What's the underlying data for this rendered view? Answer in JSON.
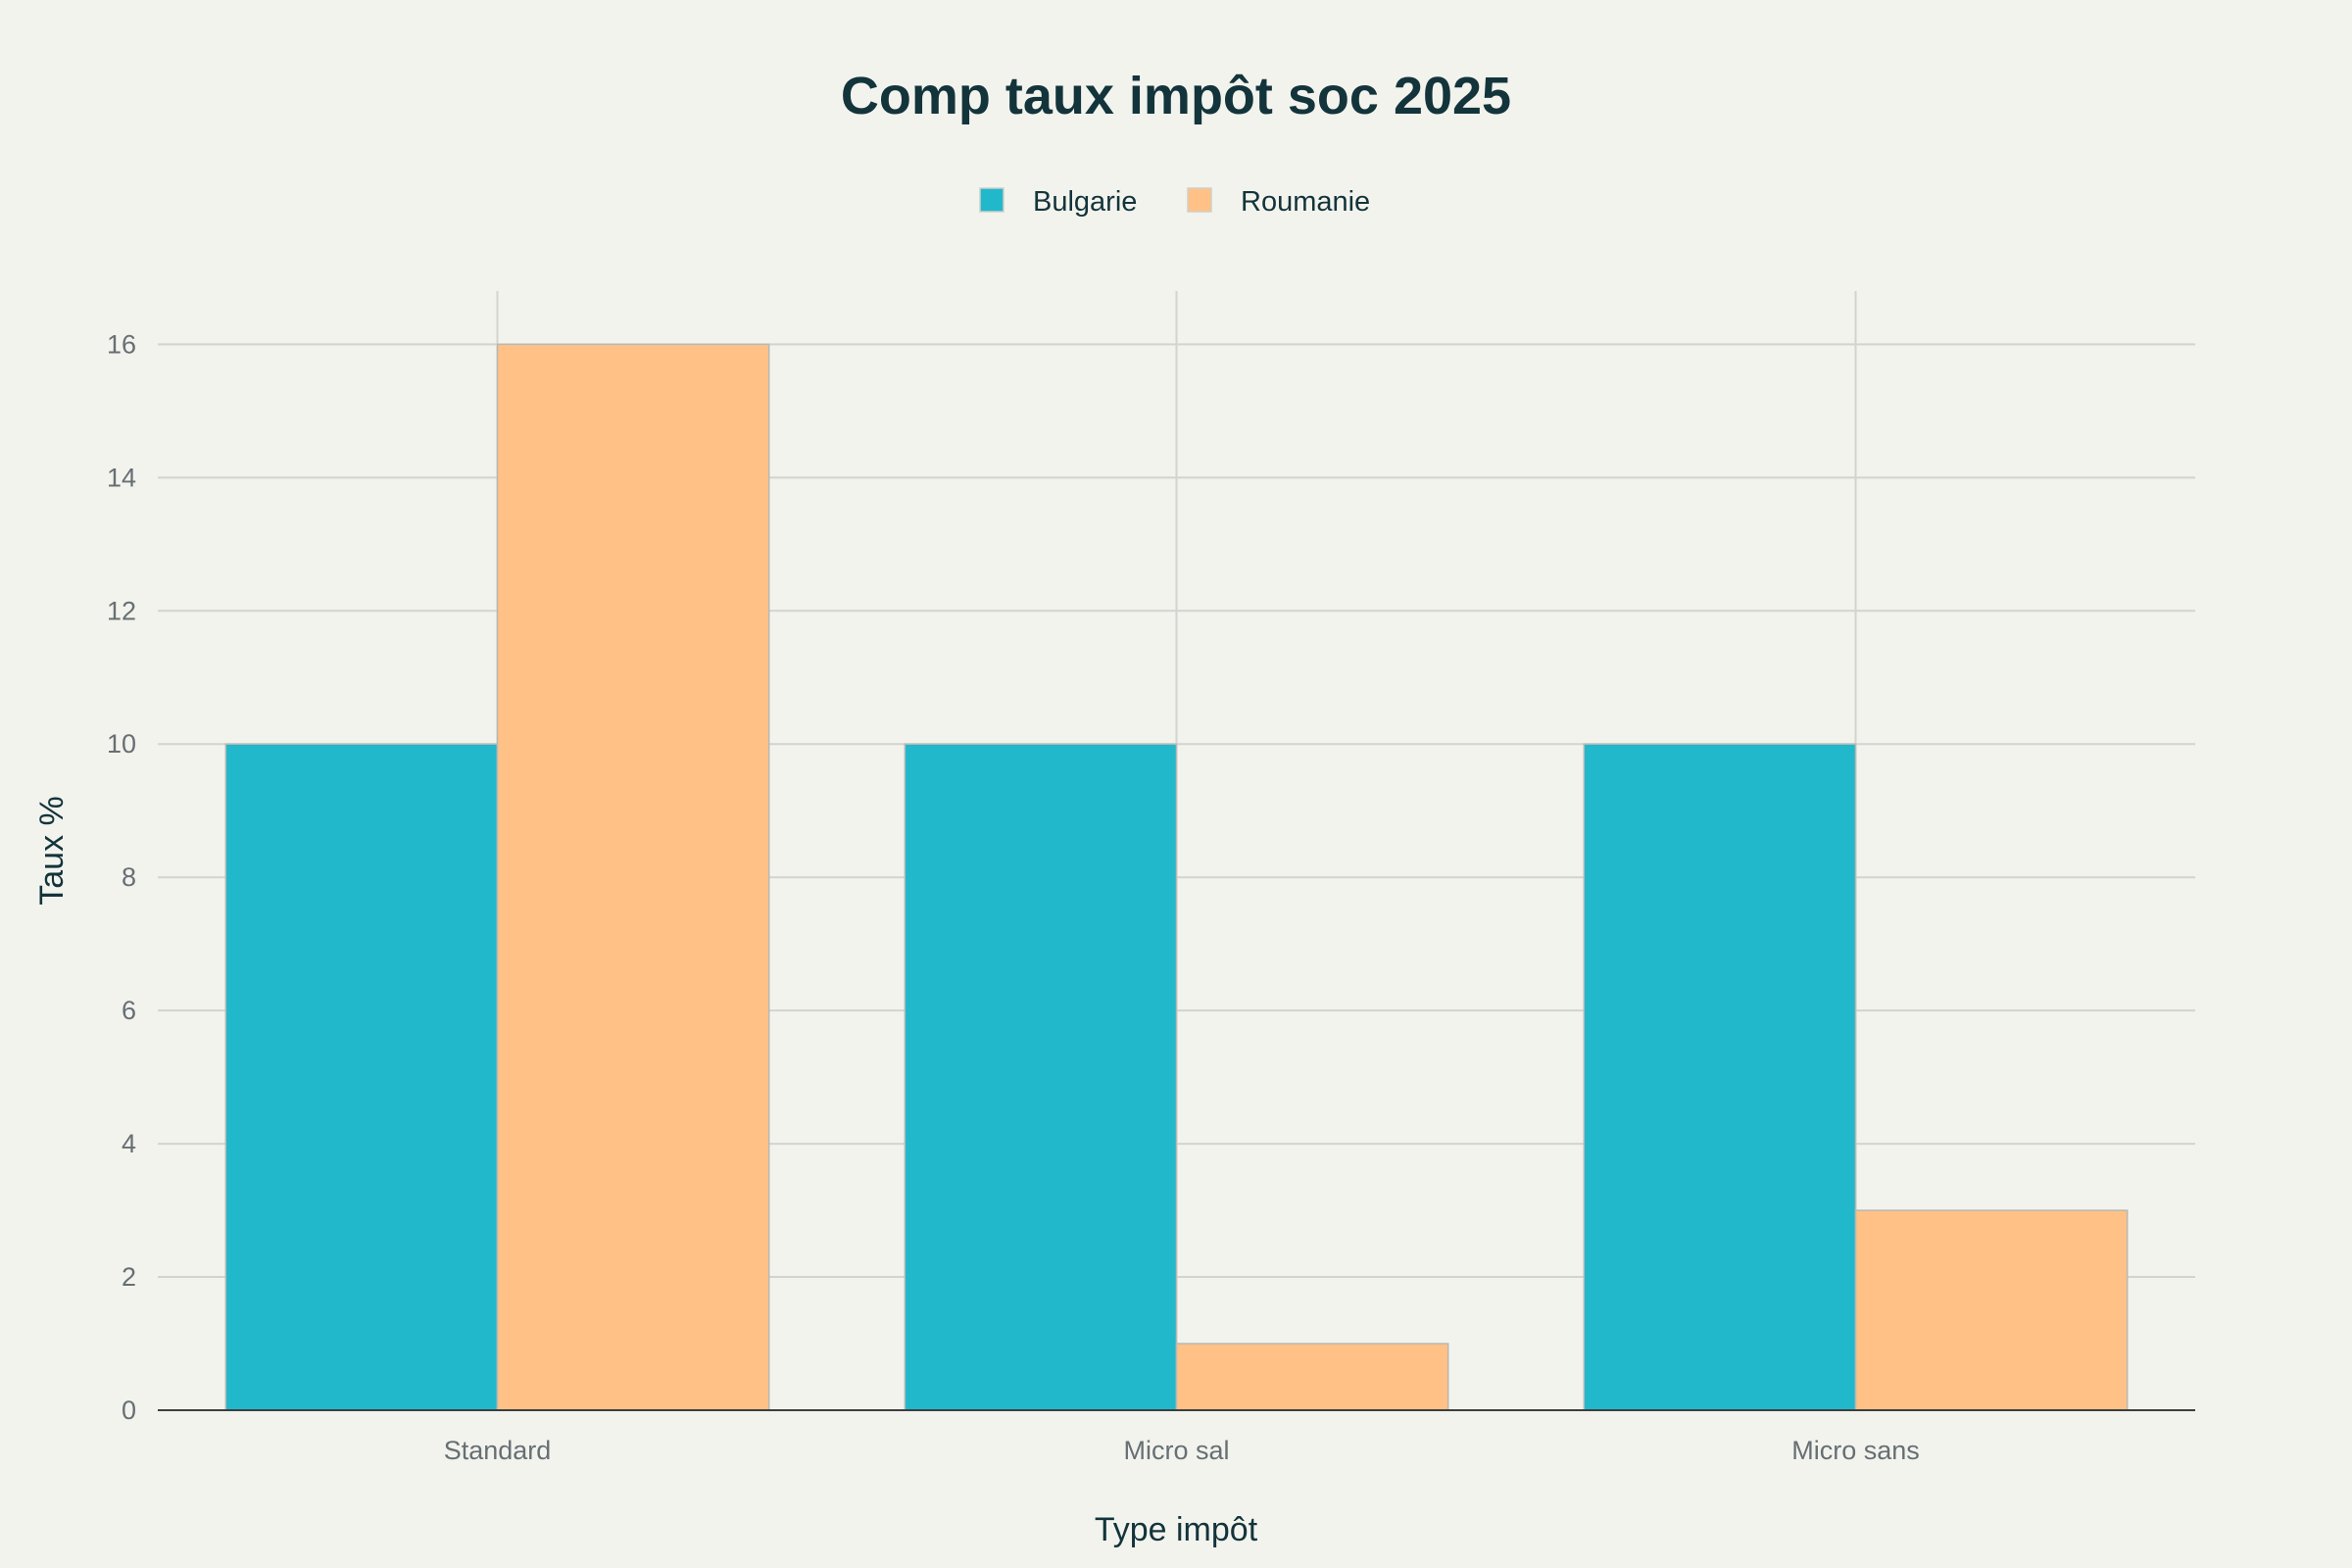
{
  "chart_data": {
    "type": "bar",
    "title": "Comp taux impôt soc 2025",
    "xlabel": "Type impôt",
    "ylabel": "Taux %",
    "categories": [
      "Standard",
      "Micro sal",
      "Micro sans"
    ],
    "series": [
      {
        "name": "Bulgarie",
        "values": [
          10,
          10,
          10
        ],
        "color": "#21b8cc"
      },
      {
        "name": "Roumanie",
        "values": [
          16,
          1,
          3
        ],
        "color": "#ffc185"
      }
    ],
    "ylim": [
      0,
      16.8
    ],
    "yticks": [
      0,
      2,
      4,
      6,
      8,
      10,
      12,
      14,
      16
    ],
    "grid": true,
    "legend": "top-center"
  }
}
